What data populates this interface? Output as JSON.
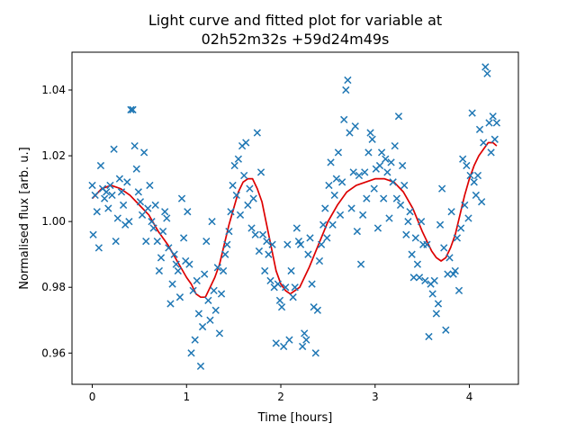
{
  "chart_data": {
    "type": "scatter",
    "title_line1": "Light curve and fitted plot for variable at",
    "title_line2": "02h52m32s +59d24m49s",
    "xlabel": "Time [hours]",
    "ylabel": "Normalised flux [arb. u.]",
    "xlim": [
      -0.215,
      4.52
    ],
    "ylim": [
      0.9505,
      1.0515
    ],
    "xticks": [
      0,
      1,
      2,
      3,
      4
    ],
    "yticks": [
      0.96,
      0.98,
      1.0,
      1.02,
      1.04
    ],
    "xtick_labels": [
      "0",
      "1",
      "2",
      "3",
      "4"
    ],
    "ytick_labels": [
      "0.96",
      "0.98",
      "1.00",
      "1.02",
      "1.04"
    ],
    "grid": false,
    "legend": "none",
    "series": [
      {
        "kind": "scatter",
        "marker": "x",
        "color": "#1f77b4",
        "points": [
          [
            0.0,
            1.011
          ],
          [
            0.01,
            0.996
          ],
          [
            0.03,
            1.008
          ],
          [
            0.05,
            1.003
          ],
          [
            0.07,
            0.992
          ],
          [
            0.09,
            1.017
          ],
          [
            0.11,
            1.01
          ],
          [
            0.13,
            1.007
          ],
          [
            0.15,
            1.009
          ],
          [
            0.17,
            1.004
          ],
          [
            0.19,
            1.011
          ],
          [
            0.21,
            1.008
          ],
          [
            0.23,
            1.022
          ],
          [
            0.25,
            0.994
          ],
          [
            0.27,
            1.001
          ],
          [
            0.29,
            1.013
          ],
          [
            0.31,
            1.009
          ],
          [
            0.33,
            1.005
          ],
          [
            0.35,
            0.999
          ],
          [
            0.37,
            1.012
          ],
          [
            0.39,
            1.0
          ],
          [
            0.41,
            1.034
          ],
          [
            0.43,
            1.034
          ],
          [
            0.45,
            1.023
          ],
          [
            0.47,
            1.016
          ],
          [
            0.49,
            1.009
          ],
          [
            0.51,
            1.006
          ],
          [
            0.53,
            1.002
          ],
          [
            0.55,
            1.021
          ],
          [
            0.57,
            0.994
          ],
          [
            0.59,
            1.004
          ],
          [
            0.61,
            1.011
          ],
          [
            0.63,
            1.0
          ],
          [
            0.65,
            0.998
          ],
          [
            0.67,
            1.005
          ],
          [
            0.69,
            0.994
          ],
          [
            0.71,
            0.985
          ],
          [
            0.73,
            0.989
          ],
          [
            0.75,
            0.997
          ],
          [
            0.77,
            1.003
          ],
          [
            0.79,
            1.001
          ],
          [
            0.81,
            0.992
          ],
          [
            0.83,
            0.975
          ],
          [
            0.85,
            0.981
          ],
          [
            0.87,
            0.99
          ],
          [
            0.89,
            0.987
          ],
          [
            0.91,
            0.985
          ],
          [
            0.93,
            0.977
          ],
          [
            0.95,
            1.007
          ],
          [
            0.97,
            0.995
          ],
          [
            0.99,
            0.988
          ],
          [
            1.01,
            1.003
          ],
          [
            1.03,
            0.987
          ],
          [
            1.05,
            0.96
          ],
          [
            1.07,
            0.979
          ],
          [
            1.09,
            0.964
          ],
          [
            1.11,
            0.982
          ],
          [
            1.13,
            0.972
          ],
          [
            1.15,
            0.956
          ],
          [
            1.17,
            0.968
          ],
          [
            1.19,
            0.984
          ],
          [
            1.21,
            0.994
          ],
          [
            1.23,
            0.976
          ],
          [
            1.25,
            0.97
          ],
          [
            1.27,
            1.0
          ],
          [
            1.29,
            0.979
          ],
          [
            1.31,
            0.973
          ],
          [
            1.33,
            0.986
          ],
          [
            1.35,
            0.966
          ],
          [
            1.37,
            0.978
          ],
          [
            1.39,
            0.985
          ],
          [
            1.41,
            0.99
          ],
          [
            1.43,
            0.993
          ],
          [
            1.45,
            0.997
          ],
          [
            1.47,
            1.003
          ],
          [
            1.49,
            1.011
          ],
          [
            1.51,
            1.017
          ],
          [
            1.53,
            1.008
          ],
          [
            1.55,
            1.019
          ],
          [
            1.57,
            1.002
          ],
          [
            1.59,
            1.023
          ],
          [
            1.61,
            1.014
          ],
          [
            1.63,
            1.024
          ],
          [
            1.65,
            1.005
          ],
          [
            1.67,
            1.01
          ],
          [
            1.69,
            0.998
          ],
          [
            1.71,
            1.007
          ],
          [
            1.73,
            0.996
          ],
          [
            1.75,
            1.027
          ],
          [
            1.77,
            0.991
          ],
          [
            1.79,
            1.015
          ],
          [
            1.81,
            0.996
          ],
          [
            1.83,
            0.985
          ],
          [
            1.85,
            0.994
          ],
          [
            1.87,
            0.99
          ],
          [
            1.89,
            0.982
          ],
          [
            1.91,
            0.993
          ],
          [
            1.93,
            0.98
          ],
          [
            1.95,
            0.963
          ],
          [
            1.97,
            0.981
          ],
          [
            1.99,
            0.976
          ],
          [
            2.01,
            0.974
          ],
          [
            2.03,
            0.962
          ],
          [
            2.05,
            0.98
          ],
          [
            2.07,
            0.993
          ],
          [
            2.09,
            0.964
          ],
          [
            2.11,
            0.985
          ],
          [
            2.13,
            0.977
          ],
          [
            2.15,
            0.98
          ],
          [
            2.17,
            0.998
          ],
          [
            2.19,
            0.994
          ],
          [
            2.21,
            0.993
          ],
          [
            2.23,
            0.962
          ],
          [
            2.25,
            0.966
          ],
          [
            2.27,
            0.964
          ],
          [
            2.29,
            0.99
          ],
          [
            2.31,
            0.995
          ],
          [
            2.33,
            0.981
          ],
          [
            2.35,
            0.974
          ],
          [
            2.37,
            0.96
          ],
          [
            2.39,
            0.973
          ],
          [
            2.41,
            0.988
          ],
          [
            2.43,
            0.993
          ],
          [
            2.45,
            0.999
          ],
          [
            2.47,
            1.004
          ],
          [
            2.49,
            0.995
          ],
          [
            2.51,
            1.011
          ],
          [
            2.53,
            1.018
          ],
          [
            2.55,
            0.999
          ],
          [
            2.57,
            1.008
          ],
          [
            2.59,
            1.013
          ],
          [
            2.61,
            1.021
          ],
          [
            2.63,
            1.002
          ],
          [
            2.65,
            1.012
          ],
          [
            2.67,
            1.031
          ],
          [
            2.69,
            1.04
          ],
          [
            2.71,
            1.043
          ],
          [
            2.73,
            1.027
          ],
          [
            2.75,
            1.004
          ],
          [
            2.77,
            1.015
          ],
          [
            2.79,
            1.029
          ],
          [
            2.81,
            0.997
          ],
          [
            2.83,
            1.014
          ],
          [
            2.85,
            0.987
          ],
          [
            2.87,
            1.002
          ],
          [
            2.89,
            1.015
          ],
          [
            2.91,
            1.007
          ],
          [
            2.93,
            1.021
          ],
          [
            2.95,
            1.027
          ],
          [
            2.97,
            1.025
          ],
          [
            2.99,
            1.01
          ],
          [
            3.01,
            1.016
          ],
          [
            3.03,
            0.998
          ],
          [
            3.05,
            1.017
          ],
          [
            3.07,
            1.021
          ],
          [
            3.09,
            1.007
          ],
          [
            3.11,
            1.019
          ],
          [
            3.13,
            1.015
          ],
          [
            3.15,
            1.001
          ],
          [
            3.17,
            1.018
          ],
          [
            3.19,
            1.012
          ],
          [
            3.21,
            1.023
          ],
          [
            3.23,
            1.007
          ],
          [
            3.25,
            1.032
          ],
          [
            3.27,
            1.005
          ],
          [
            3.29,
            1.017
          ],
          [
            3.31,
            1.011
          ],
          [
            3.33,
            0.996
          ],
          [
            3.35,
            1.0
          ],
          [
            3.37,
            1.003
          ],
          [
            3.39,
            0.99
          ],
          [
            3.41,
            0.983
          ],
          [
            3.43,
            0.995
          ],
          [
            3.45,
            0.987
          ],
          [
            3.47,
            0.983
          ],
          [
            3.49,
            1.0
          ],
          [
            3.51,
            0.993
          ],
          [
            3.53,
            0.982
          ],
          [
            3.55,
            0.993
          ],
          [
            3.57,
            0.965
          ],
          [
            3.59,
            0.981
          ],
          [
            3.61,
            0.978
          ],
          [
            3.63,
            0.982
          ],
          [
            3.65,
            0.972
          ],
          [
            3.67,
            0.975
          ],
          [
            3.69,
            0.999
          ],
          [
            3.71,
            1.01
          ],
          [
            3.73,
            0.992
          ],
          [
            3.75,
            0.967
          ],
          [
            3.77,
            0.984
          ],
          [
            3.79,
            0.989
          ],
          [
            3.81,
            1.003
          ],
          [
            3.83,
            0.984
          ],
          [
            3.85,
            0.985
          ],
          [
            3.87,
            0.995
          ],
          [
            3.89,
            0.979
          ],
          [
            3.91,
            0.998
          ],
          [
            3.93,
            1.019
          ],
          [
            3.95,
            1.005
          ],
          [
            3.97,
            1.017
          ],
          [
            3.99,
            1.001
          ],
          [
            4.01,
            1.014
          ],
          [
            4.03,
            1.033
          ],
          [
            4.05,
            1.012
          ],
          [
            4.07,
            1.008
          ],
          [
            4.09,
            1.014
          ],
          [
            4.11,
            1.028
          ],
          [
            4.13,
            1.006
          ],
          [
            4.15,
            1.024
          ],
          [
            4.17,
            1.047
          ],
          [
            4.19,
            1.045
          ],
          [
            4.21,
            1.03
          ],
          [
            4.23,
            1.021
          ],
          [
            4.25,
            1.032
          ],
          [
            4.27,
            1.025
          ],
          [
            4.29,
            1.03
          ]
        ]
      },
      {
        "kind": "line",
        "color": "#dd0000",
        "points": [
          [
            0.0,
            1.007
          ],
          [
            0.1,
            1.01
          ],
          [
            0.2,
            1.011
          ],
          [
            0.3,
            1.01
          ],
          [
            0.4,
            1.008
          ],
          [
            0.5,
            1.005
          ],
          [
            0.6,
            1.002
          ],
          [
            0.7,
            0.997
          ],
          [
            0.8,
            0.993
          ],
          [
            0.9,
            0.988
          ],
          [
            1.0,
            0.983
          ],
          [
            1.05,
            0.981
          ],
          [
            1.1,
            0.978
          ],
          [
            1.15,
            0.977
          ],
          [
            1.2,
            0.977
          ],
          [
            1.25,
            0.98
          ],
          [
            1.3,
            0.983
          ],
          [
            1.35,
            0.987
          ],
          [
            1.4,
            0.993
          ],
          [
            1.45,
            0.999
          ],
          [
            1.5,
            1.004
          ],
          [
            1.55,
            1.009
          ],
          [
            1.6,
            1.012
          ],
          [
            1.65,
            1.013
          ],
          [
            1.7,
            1.013
          ],
          [
            1.75,
            1.01
          ],
          [
            1.8,
            1.006
          ],
          [
            1.85,
            0.999
          ],
          [
            1.9,
            0.992
          ],
          [
            1.95,
            0.985
          ],
          [
            2.0,
            0.981
          ],
          [
            2.05,
            0.979
          ],
          [
            2.1,
            0.978
          ],
          [
            2.15,
            0.979
          ],
          [
            2.2,
            0.98
          ],
          [
            2.25,
            0.983
          ],
          [
            2.3,
            0.986
          ],
          [
            2.4,
            0.993
          ],
          [
            2.5,
            1.0
          ],
          [
            2.6,
            1.005
          ],
          [
            2.7,
            1.009
          ],
          [
            2.8,
            1.011
          ],
          [
            2.9,
            1.012
          ],
          [
            3.0,
            1.013
          ],
          [
            3.1,
            1.013
          ],
          [
            3.2,
            1.012
          ],
          [
            3.3,
            1.009
          ],
          [
            3.4,
            1.004
          ],
          [
            3.5,
            0.997
          ],
          [
            3.55,
            0.994
          ],
          [
            3.6,
            0.991
          ],
          [
            3.65,
            0.989
          ],
          [
            3.7,
            0.988
          ],
          [
            3.75,
            0.989
          ],
          [
            3.8,
            0.992
          ],
          [
            3.85,
            0.996
          ],
          [
            3.9,
            1.002
          ],
          [
            3.95,
            1.008
          ],
          [
            4.0,
            1.013
          ],
          [
            4.05,
            1.017
          ],
          [
            4.1,
            1.02
          ],
          [
            4.15,
            1.022
          ],
          [
            4.2,
            1.024
          ],
          [
            4.25,
            1.024
          ],
          [
            4.29,
            1.023
          ]
        ]
      }
    ]
  }
}
